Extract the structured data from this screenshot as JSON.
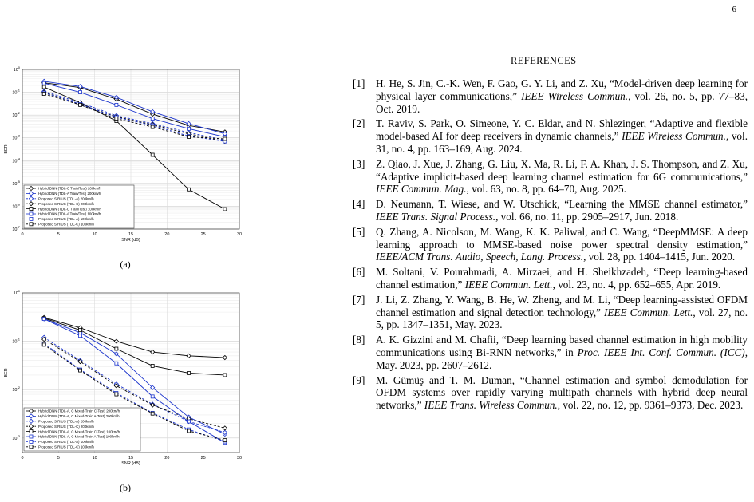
{
  "page_number": "6",
  "references_title": "REFERENCES",
  "figures": [
    {
      "caption": "(a)",
      "chart_data": {
        "type": "line",
        "xlabel": "SNR (dB)",
        "ylabel": "BER",
        "xlim": [
          0,
          30
        ],
        "ylim_log10": [
          -7,
          0
        ],
        "scale_y": "log",
        "grid": true,
        "legend_position": "bottom-left",
        "x_ticks": [
          "0",
          "5",
          "10",
          "15",
          "20",
          "25",
          "30"
        ],
        "y_ticks": [
          "10^0",
          "10^-1",
          "10^-2",
          "10^-3",
          "10^-4",
          "10^-5",
          "10^-6",
          "10^-7"
        ],
        "x": [
          3,
          8,
          13,
          18,
          23,
          28
        ],
        "series": [
          {
            "name": "Hybrid DNN (TDL-C Train/Test) 200km/h",
            "color": "#000000",
            "dash": "solid",
            "marker": "diamond",
            "values": [
              0.26,
              0.16,
              0.05,
              0.011,
              0.0035,
              0.0018
            ]
          },
          {
            "name": "Hybrid DNN (TDL-A Train/Test) 200km/h",
            "color": "#1a33cc",
            "dash": "solid",
            "marker": "diamond",
            "values": [
              0.3,
              0.18,
              0.06,
              0.014,
              0.0042,
              0.0015
            ]
          },
          {
            "name": "Proposed SIRIUS (TDL-A) 200km/h",
            "color": "#1a33cc",
            "dash": "dashed",
            "marker": "diamond",
            "values": [
              0.11,
              0.035,
              0.0095,
              0.0042,
              0.0017,
              0.0008
            ]
          },
          {
            "name": "Proposed SIRIUS (TDL-C) 200km/h",
            "color": "#000000",
            "dash": "dashed",
            "marker": "diamond",
            "values": [
              0.1,
              0.03,
              0.0085,
              0.0038,
              0.0015,
              0.0007
            ]
          },
          {
            "name": "Hybrid DNN (TDL-C Train/Test) 100km/h",
            "color": "#000000",
            "dash": "solid",
            "marker": "square",
            "values": [
              0.17,
              0.035,
              0.0055,
              0.00018,
              5.5e-06,
              7.5e-07
            ]
          },
          {
            "name": "Hybrid DNN (TDL-A Train/Test) 100km/h",
            "color": "#1a33cc",
            "dash": "solid",
            "marker": "square",
            "values": [
              0.25,
              0.1,
              0.028,
              0.007,
              0.0025,
              0.0011
            ]
          },
          {
            "name": "Proposed SIRIUS (TDL-A) 100km/h",
            "color": "#1a33cc",
            "dash": "dashed",
            "marker": "square",
            "values": [
              0.095,
              0.03,
              0.008,
              0.0035,
              0.0012,
              0.0007
            ]
          },
          {
            "name": "Proposed SIRIUS (TDL-C) 100km/h",
            "color": "#000000",
            "dash": "dashed",
            "marker": "square",
            "values": [
              0.085,
              0.028,
              0.007,
              0.003,
              0.0011,
              0.0009
            ]
          }
        ]
      }
    },
    {
      "caption": "(b)",
      "chart_data": {
        "type": "line",
        "xlabel": "SNR (dB)",
        "ylabel": "BER",
        "xlim": [
          0,
          30
        ],
        "ylim_log10": [
          -3.3,
          0
        ],
        "scale_y": "log",
        "grid": true,
        "legend_position": "bottom-left",
        "x_ticks": [
          "0",
          "5",
          "10",
          "15",
          "20",
          "25",
          "30"
        ],
        "y_ticks": [
          "10^0",
          "10^-1",
          "10^-2",
          "10^-3"
        ],
        "x": [
          3,
          8,
          13,
          18,
          23,
          28
        ],
        "series": [
          {
            "name": "Hybrid DNN (TDL-A, C Mixed-Train C-Test) 200km/h",
            "color": "#000000",
            "dash": "solid",
            "marker": "diamond",
            "values": [
              0.31,
              0.19,
              0.1,
              0.06,
              0.05,
              0.046
            ]
          },
          {
            "name": "Hybrid DNN (TDL-A, C Mixed-Train A-Test) 200km/h",
            "color": "#1a33cc",
            "dash": "solid",
            "marker": "diamond",
            "values": [
              0.29,
              0.15,
              0.055,
              0.011,
              0.0027,
              0.0012
            ]
          },
          {
            "name": "Proposed SIRIUS (TDL-A) 200km/h",
            "color": "#1a33cc",
            "dash": "dashed",
            "marker": "diamond",
            "values": [
              0.12,
              0.04,
              0.013,
              0.005,
              0.0022,
              0.0013
            ]
          },
          {
            "name": "Proposed SIRIUS (TDL-C) 200km/h",
            "color": "#000000",
            "dash": "dashed",
            "marker": "diamond",
            "values": [
              0.11,
              0.038,
              0.012,
              0.0048,
              0.0025,
              0.0016
            ]
          },
          {
            "name": "Hybrid DNN (TDL-A, C Mixed-Train C-Test) 100km/h",
            "color": "#000000",
            "dash": "solid",
            "marker": "square",
            "values": [
              0.3,
              0.17,
              0.07,
              0.031,
              0.022,
              0.02
            ]
          },
          {
            "name": "Hybrid DNN (TDL-A, C Mixed-Train A-Test) 100km/h",
            "color": "#1a33cc",
            "dash": "solid",
            "marker": "square",
            "values": [
              0.29,
              0.13,
              0.035,
              0.0072,
              0.0022,
              0.0008
            ]
          },
          {
            "name": "Proposed SIRIUS (TDL-A) 100km/h",
            "color": "#1a33cc",
            "dash": "dashed",
            "marker": "square",
            "values": [
              0.09,
              0.026,
              0.0085,
              0.0033,
              0.0015,
              0.00085
            ]
          },
          {
            "name": "Proposed SIRIUS (TDL-C) 100km/h",
            "color": "#000000",
            "dash": "dashed",
            "marker": "square",
            "values": [
              0.085,
              0.025,
              0.008,
              0.0032,
              0.0014,
              0.0009
            ]
          }
        ]
      }
    }
  ],
  "references": [
    {
      "num": "[1]",
      "text": "H. He, S. Jin, C.-K. Wen, F. Gao, G. Y. Li, and Z. Xu, “Model-driven deep learning for physical layer communications,” ",
      "venue": "IEEE Wireless Commun.",
      "tail": ", vol. 26, no. 5, pp. 77–83, Oct. 2019."
    },
    {
      "num": "[2]",
      "text": "T. Raviv, S. Park, O. Simeone, Y. C. Eldar, and N. Shlezinger, “Adaptive and flexible model-based AI for deep receivers in dynamic channels,” ",
      "venue": "IEEE Wireless Commun.",
      "tail": ", vol. 31, no. 4, pp. 163–169, Aug. 2024."
    },
    {
      "num": "[3]",
      "text": "Z. Qiao, J. Xue, J. Zhang, G. Liu, X. Ma, R. Li, F. A. Khan, J. S. Thompson, and Z. Xu, “Adaptive implicit-based deep learning channel estimation for 6G communications,” ",
      "venue": "IEEE Commun. Mag.",
      "tail": ", vol. 63, no. 8, pp. 64–70, Aug. 2025."
    },
    {
      "num": "[4]",
      "text": "D. Neumann, T. Wiese, and W. Utschick, “Learning the MMSE channel estimator,” ",
      "venue": "IEEE Trans. Signal Process.",
      "tail": ", vol. 66, no. 11, pp. 2905–2917, Jun. 2018."
    },
    {
      "num": "[5]",
      "text": "Q. Zhang, A. Nicolson, M. Wang, K. K. Paliwal, and C. Wang, “DeepMMSE: A deep learning approach to MMSE-based noise power spectral density estimation,” ",
      "venue": "IEEE/ACM Trans. Audio, Speech, Lang. Process.",
      "tail": ", vol. 28, pp. 1404–1415, Jun. 2020."
    },
    {
      "num": "[6]",
      "text": "M. Soltani, V. Pourahmadi, A. Mirzaei, and H. Sheikhzadeh, “Deep learning-based channel estimation,” ",
      "venue": "IEEE Commun. Lett.",
      "tail": ", vol. 23, no. 4, pp. 652–655, Apr. 2019."
    },
    {
      "num": "[7]",
      "text": "J. Li, Z. Zhang, Y. Wang, B. He, W. Zheng, and M. Li, “Deep learning-assisted OFDM channel estimation and signal detection technology,” ",
      "venue": "IEEE Commun. Lett.",
      "tail": ", vol. 27, no. 5, pp. 1347–1351, May. 2023."
    },
    {
      "num": "[8]",
      "text": "A. K. Gizzini and M. Chafii, “Deep learning based channel estimation in high mobility communications using Bi-RNN networks,” in ",
      "venue": "Proc. IEEE Int. Conf. Commun. (ICC)",
      "tail": ", May. 2023, pp. 2607–2612."
    },
    {
      "num": "[9]",
      "text": "M. Gümüş and T. M. Duman, “Channel estimation and symbol demodulation for OFDM systems over rapidly varying multipath channels with hybrid deep neural networks,” ",
      "venue": "IEEE Trans. Wireless Commun.",
      "tail": ", vol. 22, no. 12, pp. 9361–9373, Dec. 2023."
    }
  ]
}
